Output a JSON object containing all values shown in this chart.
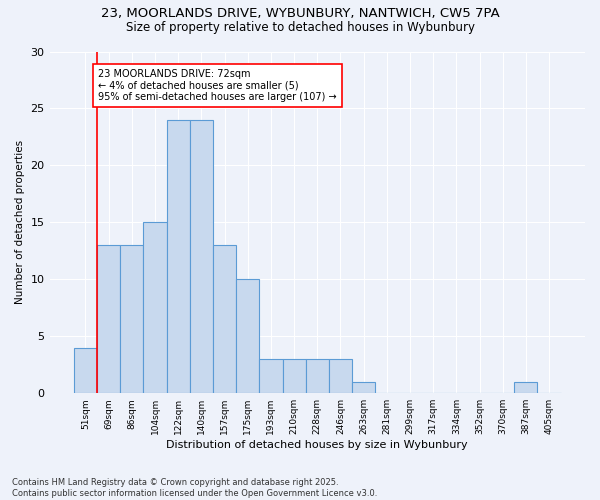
{
  "title_line1": "23, MOORLANDS DRIVE, WYBUNBURY, NANTWICH, CW5 7PA",
  "title_line2": "Size of property relative to detached houses in Wybunbury",
  "xlabel": "Distribution of detached houses by size in Wybunbury",
  "ylabel": "Number of detached properties",
  "categories": [
    "51sqm",
    "69sqm",
    "86sqm",
    "104sqm",
    "122sqm",
    "140sqm",
    "157sqm",
    "175sqm",
    "193sqm",
    "210sqm",
    "228sqm",
    "246sqm",
    "263sqm",
    "281sqm",
    "299sqm",
    "317sqm",
    "334sqm",
    "352sqm",
    "370sqm",
    "387sqm",
    "405sqm"
  ],
  "values": [
    4,
    13,
    13,
    15,
    24,
    24,
    13,
    10,
    3,
    3,
    3,
    3,
    1,
    0,
    0,
    0,
    0,
    0,
    0,
    1,
    0
  ],
  "bar_color": "#c8d9ee",
  "bar_edge_color": "#5b9bd5",
  "annotation_text": "23 MOORLANDS DRIVE: 72sqm\n← 4% of detached houses are smaller (5)\n95% of semi-detached houses are larger (107) →",
  "vline_x": 0.5,
  "ylim": [
    0,
    30
  ],
  "yticks": [
    0,
    5,
    10,
    15,
    20,
    25,
    30
  ],
  "footnote": "Contains HM Land Registry data © Crown copyright and database right 2025.\nContains public sector information licensed under the Open Government Licence v3.0.",
  "bg_color": "#eef2fa",
  "plot_bg_color": "#eef2fa"
}
